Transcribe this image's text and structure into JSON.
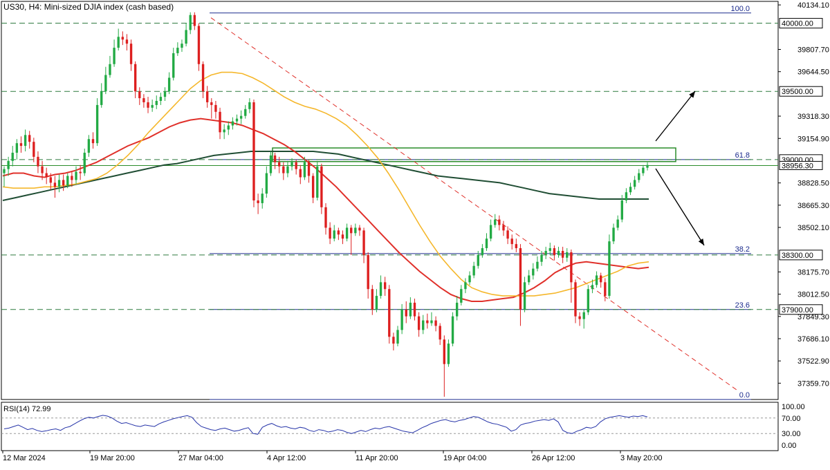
{
  "chart_title": "US30, H4:  Mini-sized DJIA index (cash based)",
  "rsi_title": "RSI(14) 72.99",
  "colors": {
    "bull": "#22aa44",
    "bear": "#dd1f1f",
    "ma_fast": "#f5b72b",
    "ma_mid": "#e0302a",
    "ma_slow": "#1f4d33",
    "level_line": "#1a2a8c",
    "dashed": "#2d7a3e",
    "rsi_line": "#2533a8",
    "zone": "#2a8c2a",
    "price_tag_bg": "#ffffff"
  },
  "chart_data": {
    "type": "candlestick",
    "symbol": "US30",
    "timeframe": "H4",
    "ylim": [
      37240,
      40160
    ],
    "y_ticks": [
      {
        "value": 40134.1,
        "label": "40134.10"
      },
      {
        "value": 39807.7,
        "label": "39807.70"
      },
      {
        "value": 39644.5,
        "label": "39644.50"
      },
      {
        "value": 39318.3,
        "label": "39318.30"
      },
      {
        "value": 39154.9,
        "label": "39154.90"
      },
      {
        "value": 38828.5,
        "label": "38828.50"
      },
      {
        "value": 38665.3,
        "label": "38665.30"
      },
      {
        "value": 38502.1,
        "label": "38502.10"
      },
      {
        "value": 38175.7,
        "label": "38175.70"
      },
      {
        "value": 38012.5,
        "label": "38012.50"
      },
      {
        "value": 37849.3,
        "label": "37849.30"
      },
      {
        "value": 37686.1,
        "label": "37686.10"
      },
      {
        "value": 37522.9,
        "label": "37522.90"
      },
      {
        "value": 37359.7,
        "label": "37359.70"
      }
    ],
    "x_ticks": [
      "12 Mar 2024",
      "19 Mar 20:00",
      "27 Mar 04:00",
      "4 Apr 12:00",
      "11 Apr 20:00",
      "19 Apr 04:00",
      "26 Apr 12:00",
      "3 May 20:00"
    ],
    "price_levels": [
      {
        "value": 40000.0,
        "label": "40000.00"
      },
      {
        "value": 39500.0,
        "label": "39500.00"
      },
      {
        "value": 39000.0,
        "label": "39000.00"
      },
      {
        "value": 38300.0,
        "label": "38300.00"
      },
      {
        "value": 37900.0,
        "label": "37900.00"
      }
    ],
    "current_price": {
      "value": 38956.3,
      "label": "38956.30"
    },
    "fibonacci": [
      {
        "level": "100.0",
        "price": 40075
      },
      {
        "level": "61.8",
        "price": 39000
      },
      {
        "level": "38.2",
        "price": 38310
      },
      {
        "level": "23.6",
        "price": 37900
      },
      {
        "level": "0.0",
        "price": 37240
      }
    ],
    "candles": [
      [
        38900,
        38930,
        38800,
        38950
      ],
      [
        38930,
        38990,
        38880,
        39020
      ],
      [
        38990,
        39050,
        38950,
        39100
      ],
      [
        39050,
        39120,
        39000,
        39150
      ],
      [
        39120,
        39100,
        39050,
        39170
      ],
      [
        39100,
        39180,
        39060,
        39220
      ],
      [
        39180,
        39130,
        39080,
        39210
      ],
      [
        39130,
        39020,
        38980,
        39160
      ],
      [
        39020,
        38950,
        38900,
        39060
      ],
      [
        38950,
        38900,
        38850,
        38990
      ],
      [
        38900,
        38870,
        38820,
        38940
      ],
      [
        38870,
        38830,
        38780,
        38900
      ],
      [
        38830,
        38800,
        38720,
        38880
      ],
      [
        38800,
        38850,
        38760,
        38890
      ],
      [
        38850,
        38810,
        38770,
        38890
      ],
      [
        38810,
        38880,
        38790,
        38900
      ],
      [
        38880,
        38850,
        38800,
        38910
      ],
      [
        38850,
        38910,
        38820,
        38950
      ],
      [
        38910,
        38900,
        38850,
        38960
      ],
      [
        38900,
        39050,
        38880,
        39080
      ],
      [
        39050,
        39150,
        39020,
        39180
      ],
      [
        39150,
        39120,
        39080,
        39200
      ],
      [
        39120,
        39400,
        39100,
        39450
      ],
      [
        39400,
        39500,
        39380,
        39560
      ],
      [
        39500,
        39620,
        39480,
        39680
      ],
      [
        39620,
        39700,
        39600,
        39760
      ],
      [
        39700,
        39820,
        39680,
        39880
      ],
      [
        39820,
        39900,
        39800,
        39960
      ],
      [
        39900,
        39880,
        39840,
        39940
      ],
      [
        39880,
        39850,
        39800,
        39920
      ],
      [
        39850,
        39700,
        39650,
        39880
      ],
      [
        39700,
        39500,
        39450,
        39720
      ],
      [
        39500,
        39450,
        39400,
        39530
      ],
      [
        39450,
        39420,
        39380,
        39480
      ],
      [
        39420,
        39380,
        39340,
        39460
      ],
      [
        39380,
        39400,
        39350,
        39440
      ],
      [
        39400,
        39430,
        39370,
        39470
      ],
      [
        39430,
        39460,
        39400,
        39490
      ],
      [
        39460,
        39500,
        39430,
        39530
      ],
      [
        39500,
        39600,
        39480,
        39640
      ],
      [
        39600,
        39780,
        39580,
        39820
      ],
      [
        39780,
        39820,
        39760,
        39860
      ],
      [
        39820,
        39850,
        39790,
        39880
      ],
      [
        39850,
        39950,
        39830,
        40000
      ],
      [
        39950,
        40060,
        39920,
        40080
      ],
      [
        40060,
        39980,
        39950,
        40080
      ],
      [
        39980,
        39700,
        39650,
        40000
      ],
      [
        39700,
        39500,
        39450,
        39720
      ],
      [
        39500,
        39420,
        39380,
        39540
      ],
      [
        39420,
        39400,
        39300,
        39450
      ],
      [
        39400,
        39350,
        39300,
        39430
      ],
      [
        39350,
        39200,
        39150,
        39380
      ],
      [
        39200,
        39220,
        39150,
        39260
      ],
      [
        39220,
        39250,
        39180,
        39280
      ],
      [
        39250,
        39280,
        39220,
        39310
      ],
      [
        39280,
        39300,
        39250,
        39330
      ],
      [
        39300,
        39320,
        39260,
        39360
      ],
      [
        39320,
        39370,
        39300,
        39400
      ],
      [
        39370,
        39420,
        39340,
        39450
      ],
      [
        39420,
        38700,
        38650,
        39440
      ],
      [
        38700,
        38680,
        38600,
        38750
      ],
      [
        38680,
        38750,
        38640,
        38790
      ],
      [
        38750,
        38900,
        38720,
        38950
      ],
      [
        38900,
        39030,
        38880,
        39060
      ],
      [
        39030,
        38980,
        38930,
        39050
      ],
      [
        38980,
        38950,
        38900,
        39020
      ],
      [
        38950,
        38900,
        38850,
        38980
      ],
      [
        38900,
        38950,
        38870,
        38990
      ],
      [
        38950,
        38980,
        38920,
        39010
      ],
      [
        38980,
        38930,
        38890,
        39000
      ],
      [
        38930,
        38870,
        38820,
        38960
      ],
      [
        38870,
        38980,
        38850,
        39020
      ],
      [
        38980,
        38880,
        38830,
        39000
      ],
      [
        38880,
        38720,
        38680,
        38900
      ],
      [
        38720,
        38950,
        38700,
        38990
      ],
      [
        38950,
        38650,
        38600,
        38970
      ],
      [
        38650,
        38500,
        38450,
        38680
      ],
      [
        38500,
        38420,
        38380,
        38540
      ],
      [
        38420,
        38480,
        38400,
        38520
      ],
      [
        38480,
        38450,
        38410,
        38500
      ],
      [
        38450,
        38420,
        38380,
        38480
      ],
      [
        38420,
        38500,
        38400,
        38530
      ],
      [
        38500,
        38460,
        38300,
        38520
      ],
      [
        38460,
        38500,
        38440,
        38530
      ],
      [
        38500,
        38480,
        38440,
        38520
      ],
      [
        38480,
        38300,
        38240,
        38500
      ],
      [
        38300,
        38050,
        37980,
        38320
      ],
      [
        38050,
        37900,
        37860,
        38080
      ],
      [
        37900,
        38000,
        37880,
        38050
      ],
      [
        38000,
        38100,
        37980,
        38150
      ],
      [
        38100,
        38050,
        38000,
        38140
      ],
      [
        38050,
        37700,
        37650,
        38080
      ],
      [
        37700,
        37650,
        37600,
        37730
      ],
      [
        37650,
        37750,
        37630,
        37780
      ],
      [
        37750,
        37900,
        37720,
        37940
      ],
      [
        37900,
        37850,
        37800,
        37960
      ],
      [
        37850,
        37950,
        37830,
        37990
      ],
      [
        37950,
        37850,
        37820,
        37980
      ],
      [
        37850,
        37750,
        37700,
        37880
      ],
      [
        37750,
        37820,
        37720,
        37860
      ],
      [
        37820,
        37800,
        37760,
        37870
      ],
      [
        37800,
        37820,
        37780,
        37880
      ],
      [
        37820,
        37780,
        37740,
        37850
      ],
      [
        37780,
        37680,
        37640,
        37800
      ],
      [
        37680,
        37500,
        37260,
        37710
      ],
      [
        37500,
        37650,
        37480,
        37680
      ],
      [
        37650,
        37850,
        37630,
        37880
      ],
      [
        37850,
        37950,
        37820,
        38000
      ],
      [
        37950,
        38050,
        37930,
        38080
      ],
      [
        38050,
        38100,
        38020,
        38130
      ],
      [
        38100,
        38150,
        38080,
        38180
      ],
      [
        38150,
        38220,
        38130,
        38250
      ],
      [
        38220,
        38300,
        38200,
        38330
      ],
      [
        38300,
        38350,
        38280,
        38380
      ],
      [
        38350,
        38420,
        38330,
        38460
      ],
      [
        38420,
        38520,
        38400,
        38560
      ],
      [
        38520,
        38560,
        38500,
        38600
      ],
      [
        38560,
        38520,
        38480,
        38590
      ],
      [
        38520,
        38480,
        38440,
        38550
      ],
      [
        38480,
        38420,
        38380,
        38510
      ],
      [
        38420,
        38380,
        38340,
        38450
      ],
      [
        38380,
        38350,
        38320,
        38420
      ],
      [
        38350,
        37900,
        37780,
        38380
      ],
      [
        37900,
        38100,
        37880,
        38140
      ],
      [
        38100,
        38150,
        38080,
        38190
      ],
      [
        38150,
        38200,
        38120,
        38240
      ],
      [
        38200,
        38250,
        38180,
        38290
      ],
      [
        38250,
        38300,
        38220,
        38330
      ],
      [
        38300,
        38330,
        38270,
        38360
      ],
      [
        38330,
        38350,
        38300,
        38390
      ],
      [
        38350,
        38300,
        38260,
        38370
      ],
      [
        38300,
        38330,
        38280,
        38360
      ],
      [
        38330,
        38280,
        38240,
        38360
      ],
      [
        38280,
        38320,
        38250,
        38350
      ],
      [
        38320,
        38100,
        37950,
        38340
      ],
      [
        38100,
        37850,
        37800,
        38120
      ],
      [
        37850,
        37830,
        37780,
        37880
      ],
      [
        37830,
        37880,
        37760,
        37900
      ],
      [
        37880,
        38050,
        37860,
        38080
      ],
      [
        38050,
        38080,
        38020,
        38120
      ],
      [
        38080,
        38150,
        38060,
        38180
      ],
      [
        38150,
        38100,
        38060,
        38170
      ],
      [
        38100,
        38000,
        37960,
        38130
      ],
      [
        38000,
        38400,
        37980,
        38450
      ],
      [
        38400,
        38500,
        38380,
        38530
      ],
      [
        38500,
        38560,
        38480,
        38590
      ],
      [
        38560,
        38700,
        38540,
        38740
      ],
      [
        38700,
        38760,
        38680,
        38790
      ],
      [
        38760,
        38800,
        38740,
        38830
      ],
      [
        38800,
        38850,
        38780,
        38880
      ],
      [
        38850,
        38900,
        38830,
        38930
      ],
      [
        38900,
        38940,
        38880,
        38960
      ],
      [
        38940,
        38960,
        38920,
        38980
      ]
    ],
    "ma_fast": [
      38800,
      38790,
      38790,
      38790,
      38800,
      38800,
      38810,
      38820,
      38840,
      38860,
      38900,
      38960,
      39030,
      39110,
      39200,
      39280,
      39360,
      39440,
      39520,
      39580,
      39620,
      39640,
      39640,
      39630,
      39600,
      39560,
      39510,
      39460,
      39420,
      39390,
      39370,
      39340,
      39300,
      39250,
      39180,
      39100,
      39010,
      38900,
      38780,
      38650,
      38520,
      38400,
      38290,
      38200,
      38120,
      38060,
      38030,
      38010,
      38000,
      38000,
      38000,
      38000,
      38010,
      38020,
      38040,
      38060,
      38090,
      38120,
      38150,
      38180,
      38220,
      38240,
      38250
    ],
    "ma_mid": [
      38880,
      38900,
      38900,
      38880,
      38870,
      38890,
      38900,
      38920,
      38950,
      38980,
      39020,
      39060,
      39100,
      39130,
      39160,
      39200,
      39240,
      39270,
      39290,
      39300,
      39290,
      39280,
      39270,
      39250,
      39220,
      39190,
      39150,
      39110,
      39060,
      39000,
      38940,
      38870,
      38800,
      38720,
      38640,
      38560,
      38480,
      38400,
      38320,
      38250,
      38180,
      38120,
      38060,
      38010,
      37980,
      37960,
      37960,
      37970,
      37980,
      37990,
      38020,
      38060,
      38110,
      38170,
      38210,
      38240,
      38250,
      38240,
      38230,
      38220,
      38210,
      38200,
      38210
    ],
    "ma_slow": [
      38700,
      38720,
      38740,
      38760,
      38780,
      38800,
      38820,
      38840,
      38860,
      38880,
      38900,
      38920,
      38940,
      38960,
      38970,
      38990,
      39010,
      39030,
      39040,
      39050,
      39060,
      39060,
      39060,
      39060,
      39060,
      39060,
      39050,
      39040,
      39020,
      39000,
      38980,
      38960,
      38940,
      38920,
      38900,
      38880,
      38870,
      38860,
      38850,
      38840,
      38830,
      38810,
      38790,
      38770,
      38750,
      38740,
      38730,
      38720,
      38710,
      38710,
      38710,
      38710,
      38710
    ],
    "trendline": {
      "from_date": "27 Mar",
      "from_price": 40040,
      "to_price": 37300
    },
    "arrows": [
      {
        "direction": "up"
      },
      {
        "direction": "down"
      }
    ],
    "rsi": {
      "name": "RSI(14)",
      "value": 72.99,
      "ylim": [
        0,
        100
      ],
      "ticks": [
        {
          "value": 100,
          "label": "100.00"
        },
        {
          "value": 70,
          "label": "70.00"
        },
        {
          "value": 30,
          "label": "30.00"
        },
        {
          "value": 0,
          "label": "0.00"
        }
      ],
      "guides": [
        70,
        30
      ],
      "values": [
        42,
        44,
        48,
        52,
        46,
        40,
        43,
        38,
        35,
        37,
        40,
        42,
        38,
        45,
        48,
        55,
        62,
        68,
        72,
        70,
        74,
        77,
        75,
        70,
        62,
        56,
        58,
        54,
        50,
        48,
        52,
        50,
        48,
        55,
        60,
        64,
        68,
        71,
        74,
        76,
        72,
        58,
        48,
        44,
        40,
        38,
        42,
        44,
        40,
        36,
        38,
        42,
        45,
        30,
        28,
        46,
        52,
        56,
        50,
        46,
        48,
        44,
        42,
        46,
        44,
        38,
        35,
        40,
        38,
        34,
        36,
        40,
        38,
        33,
        30,
        34,
        38,
        35,
        40,
        44,
        42,
        46,
        48,
        44,
        40,
        36,
        34,
        32,
        38,
        45,
        50,
        56,
        60,
        64,
        66,
        62,
        60,
        64,
        66,
        70,
        74,
        72,
        66,
        60,
        56,
        54,
        50,
        46,
        36,
        40,
        52,
        56,
        58,
        62,
        64,
        66,
        64,
        68,
        60,
        38,
        32,
        30,
        36,
        40,
        46,
        44,
        48,
        60,
        68,
        72,
        74,
        76,
        74,
        72,
        75,
        74,
        76,
        73
      ]
    }
  }
}
